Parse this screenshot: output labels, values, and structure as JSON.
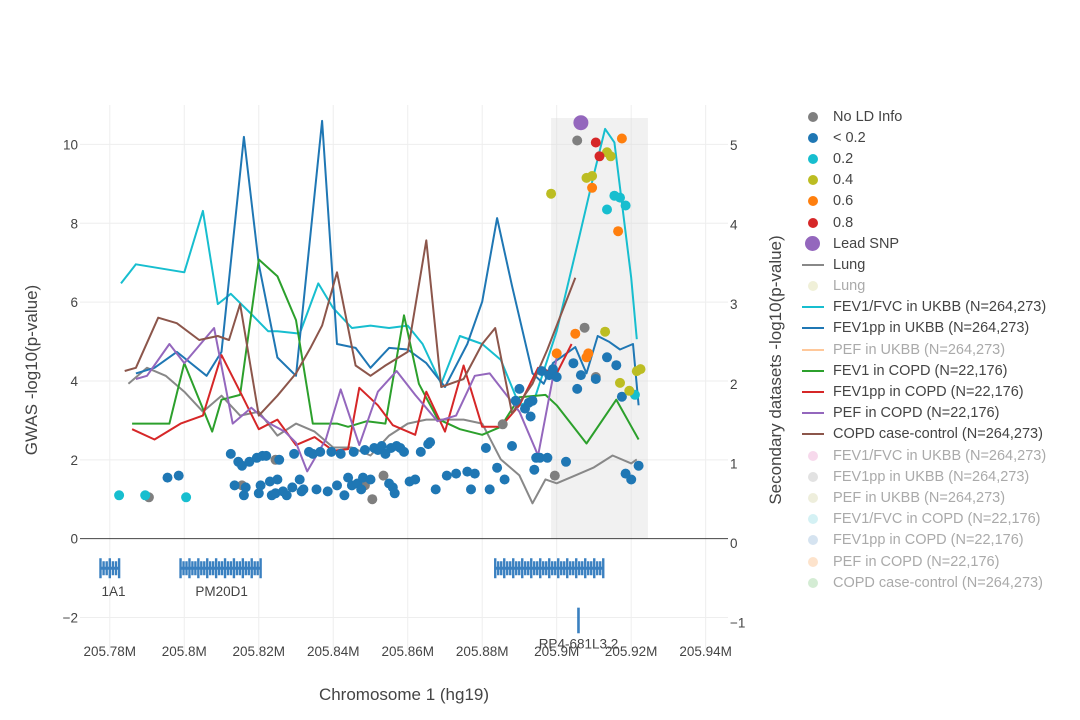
{
  "chart_data": {
    "type": "scatter",
    "xlabel": "Chromosome 1 (hg19)",
    "ylabel": "GWAS -log10(p-value)",
    "y2label": "Secondary datasets -log10(p-value)",
    "xlim": [
      205.772,
      205.946
    ],
    "ylim": [
      -2.9,
      11.0
    ],
    "y2lim": [
      -1.38,
      5.5
    ],
    "x_ticks": [
      205.78,
      205.8,
      205.82,
      205.84,
      205.86,
      205.88,
      205.9,
      205.92,
      205.94
    ],
    "x_tick_labels": [
      "205.78M",
      "205.8M",
      "205.82M",
      "205.84M",
      "205.86M",
      "205.88M",
      "205.9M",
      "205.92M",
      "205.94M"
    ],
    "y_ticks": [
      -2,
      0,
      2,
      4,
      6,
      8,
      10
    ],
    "y_tick_labels": [
      "−2",
      "0",
      "2",
      "4",
      "6",
      "8",
      "10"
    ],
    "y2_ticks": [
      -1,
      0,
      1,
      2,
      3,
      4,
      5
    ],
    "y2_tick_labels": [
      "−1",
      "0",
      "1",
      "2",
      "3",
      "4",
      "5"
    ],
    "highlight_region": [
      205.8985,
      205.9245
    ],
    "grid": true,
    "legend_position": "right",
    "ld_colors": {
      "none": "#7f7f7f",
      "lt02": "#1f77b4",
      "p2": "#17becf",
      "p4": "#bcbd22",
      "p6": "#ff7f0e",
      "p8": "#d62728",
      "lead": "#9467bd"
    },
    "points": {
      "none": [
        [
          205.7905,
          1.05
        ],
        [
          205.8155,
          1.35
        ],
        [
          205.8245,
          2.0
        ],
        [
          205.8485,
          1.35
        ],
        [
          205.8505,
          1.0
        ],
        [
          205.8535,
          1.6
        ],
        [
          205.8855,
          2.9
        ],
        [
          205.8995,
          1.6
        ],
        [
          205.9055,
          10.1
        ],
        [
          205.9075,
          5.35
        ],
        [
          205.9105,
          4.1
        ]
      ],
      "lt02": [
        [
          205.7955,
          1.55
        ],
        [
          205.7985,
          1.6
        ],
        [
          205.8125,
          2.15
        ],
        [
          205.8135,
          1.35
        ],
        [
          205.8145,
          1.95
        ],
        [
          205.8155,
          1.85
        ],
        [
          205.816,
          1.1
        ],
        [
          205.8165,
          1.3
        ],
        [
          205.8175,
          1.95
        ],
        [
          205.8195,
          2.05
        ],
        [
          205.82,
          1.15
        ],
        [
          205.8205,
          1.35
        ],
        [
          205.821,
          2.1
        ],
        [
          205.822,
          2.1
        ],
        [
          205.823,
          1.45
        ],
        [
          205.8235,
          1.1
        ],
        [
          205.8245,
          1.15
        ],
        [
          205.825,
          1.5
        ],
        [
          205.8255,
          2.0
        ],
        [
          205.8265,
          1.2
        ],
        [
          205.8275,
          1.1
        ],
        [
          205.829,
          1.3
        ],
        [
          205.8295,
          2.15
        ],
        [
          205.831,
          1.5
        ],
        [
          205.8315,
          1.2
        ],
        [
          205.832,
          1.25
        ],
        [
          205.8335,
          2.2
        ],
        [
          205.8345,
          2.15
        ],
        [
          205.8355,
          1.25
        ],
        [
          205.8365,
          2.2
        ],
        [
          205.8385,
          1.2
        ],
        [
          205.8395,
          2.2
        ],
        [
          205.841,
          1.35
        ],
        [
          205.842,
          2.15
        ],
        [
          205.843,
          1.1
        ],
        [
          205.844,
          1.55
        ],
        [
          205.845,
          1.35
        ],
        [
          205.8455,
          2.2
        ],
        [
          205.8465,
          1.4
        ],
        [
          205.8475,
          1.25
        ],
        [
          205.848,
          1.55
        ],
        [
          205.8485,
          2.25
        ],
        [
          205.85,
          1.5
        ],
        [
          205.851,
          2.3
        ],
        [
          205.852,
          2.25
        ],
        [
          205.853,
          2.35
        ],
        [
          205.854,
          2.15
        ],
        [
          205.855,
          1.4
        ],
        [
          205.8555,
          2.3
        ],
        [
          205.856,
          1.3
        ],
        [
          205.8565,
          1.15
        ],
        [
          205.857,
          2.35
        ],
        [
          205.858,
          2.3
        ],
        [
          205.859,
          2.2
        ],
        [
          205.8605,
          1.45
        ],
        [
          205.862,
          1.5
        ],
        [
          205.8635,
          2.2
        ],
        [
          205.8655,
          2.4
        ],
        [
          205.866,
          2.45
        ],
        [
          205.8675,
          1.25
        ],
        [
          205.8705,
          1.6
        ],
        [
          205.873,
          1.65
        ],
        [
          205.876,
          1.7
        ],
        [
          205.877,
          1.25
        ],
        [
          205.878,
          1.65
        ],
        [
          205.881,
          2.3
        ],
        [
          205.882,
          1.25
        ],
        [
          205.884,
          1.8
        ],
        [
          205.886,
          1.5
        ],
        [
          205.888,
          2.35
        ],
        [
          205.889,
          3.5
        ],
        [
          205.89,
          3.8
        ],
        [
          205.8915,
          3.3
        ],
        [
          205.8925,
          3.45
        ],
        [
          205.893,
          3.1
        ],
        [
          205.8935,
          3.5
        ],
        [
          205.894,
          1.75
        ],
        [
          205.8945,
          2.05
        ],
        [
          205.8955,
          2.05
        ],
        [
          205.896,
          4.25
        ],
        [
          205.8975,
          2.05
        ],
        [
          205.898,
          4.15
        ],
        [
          205.899,
          4.3
        ],
        [
          205.9,
          4.1
        ],
        [
          205.9025,
          1.95
        ],
        [
          205.9045,
          4.45
        ],
        [
          205.9055,
          3.8
        ],
        [
          205.9065,
          4.15
        ],
        [
          205.9105,
          4.05
        ],
        [
          205.9135,
          4.6
        ],
        [
          205.916,
          4.4
        ],
        [
          205.9175,
          3.6
        ],
        [
          205.9185,
          1.65
        ],
        [
          205.92,
          1.5
        ],
        [
          205.922,
          1.85
        ]
      ],
      "p2": [
        [
          205.7825,
          1.1
        ],
        [
          205.7895,
          1.1
        ],
        [
          205.8005,
          1.05
        ],
        [
          205.9135,
          8.35
        ],
        [
          205.9155,
          8.7
        ],
        [
          205.917,
          8.65
        ],
        [
          205.9185,
          8.45
        ],
        [
          205.921,
          3.65
        ]
      ],
      "p4": [
        [
          205.8985,
          8.75
        ],
        [
          205.908,
          9.15
        ],
        [
          205.9095,
          9.2
        ],
        [
          205.913,
          5.25
        ],
        [
          205.9135,
          9.8
        ],
        [
          205.9145,
          9.7
        ],
        [
          205.917,
          3.95
        ],
        [
          205.9195,
          3.75
        ],
        [
          205.9215,
          4.25
        ],
        [
          205.9225,
          4.3
        ]
      ],
      "p6": [
        [
          205.9,
          4.7
        ],
        [
          205.905,
          5.2
        ],
        [
          205.908,
          4.6
        ],
        [
          205.9085,
          4.7
        ],
        [
          205.9095,
          8.9
        ],
        [
          205.9165,
          7.8
        ],
        [
          205.9175,
          10.15
        ]
      ],
      "p8": [
        [
          205.9105,
          10.05
        ],
        [
          205.9115,
          9.7
        ]
      ],
      "lead": [
        [
          205.9065,
          10.55
        ]
      ]
    },
    "series": [
      {
        "name": "Lung",
        "color": "#888888",
        "x": [
          205.785,
          205.79,
          205.795,
          205.8,
          205.805,
          205.81,
          205.815,
          205.82,
          205.825,
          205.83,
          205.835,
          205.84,
          205.845,
          205.85,
          205.855,
          205.86,
          205.865,
          205.87,
          205.875,
          205.88,
          205.885,
          205.89,
          205.8935,
          205.897,
          205.9,
          205.905,
          205.91,
          205.915,
          205.92,
          205.9215
        ],
        "y": [
          2.0,
          2.2,
          2.1,
          1.9,
          1.65,
          1.85,
          1.6,
          1.65,
          1.35,
          1.5,
          1.4,
          1.2,
          1.2,
          1.1,
          1.35,
          1.5,
          1.55,
          1.55,
          1.55,
          1.5,
          1.05,
          0.85,
          0.5,
          0.8,
          0.75,
          0.85,
          0.95,
          1.1,
          1.0,
          1.05
        ]
      },
      {
        "name": "FEV1/FVC in UKBB (N=264,273)",
        "color": "#17becf",
        "x": [
          205.783,
          205.787,
          205.8,
          205.805,
          205.809,
          205.8125,
          205.8175,
          205.8225,
          205.825,
          205.831,
          205.836,
          205.84,
          205.845,
          205.85,
          205.855,
          205.86,
          205.864,
          205.869,
          205.874,
          205.88,
          205.885,
          205.89,
          205.894,
          205.9,
          205.906,
          205.91,
          205.913,
          205.9155,
          205.92,
          205.9215
        ],
        "y": [
          3.26,
          3.5,
          3.4,
          4.17,
          3.0,
          3.13,
          2.9,
          2.66,
          2.66,
          2.63,
          3.26,
          2.95,
          2.7,
          2.73,
          2.7,
          2.73,
          2.5,
          2.0,
          2.6,
          2.5,
          2.3,
          1.73,
          1.8,
          2.66,
          3.83,
          4.63,
          5.2,
          5.03,
          3.33,
          2.56
        ]
      },
      {
        "name": "FEV1pp in UKBB (N=264,273)",
        "color": "#1f77b4",
        "x": [
          205.787,
          205.792,
          205.798,
          205.806,
          205.81,
          205.816,
          205.82,
          205.825,
          205.83,
          205.837,
          205.841,
          205.846,
          205.85,
          205.855,
          205.86,
          205.865,
          205.87,
          205.876,
          205.88,
          205.884,
          205.888,
          205.8935,
          205.8965,
          205.899,
          205.905,
          205.908,
          205.911,
          205.914,
          205.917,
          205.9205,
          205.922
        ],
        "y": [
          2.13,
          2.2,
          2.4,
          2.1,
          2.4,
          5.1,
          3.5,
          2.33,
          2.1,
          5.3,
          2.5,
          2.45,
          2.2,
          2.45,
          2.43,
          2.26,
          1.96,
          2.5,
          3.03,
          4.08,
          3.23,
          2.13,
          2.0,
          2.26,
          2.46,
          2.13,
          2.6,
          2.53,
          2.43,
          2.5,
          1.73
        ]
      },
      {
        "name": "FEV1 in COPD (N=22,176)",
        "color": "#2ca02c",
        "x": [
          205.786,
          205.796,
          205.8,
          205.8075,
          205.81,
          205.815,
          205.82,
          205.825,
          205.83,
          205.8345,
          205.841,
          205.844,
          205.849,
          205.854,
          205.859,
          205.863,
          205.868,
          205.874,
          205.88,
          205.885,
          205.89,
          205.897,
          205.9,
          205.908,
          205.916,
          205.922
        ],
        "y": [
          1.5,
          1.5,
          2.26,
          1.4,
          1.8,
          1.86,
          3.56,
          3.35,
          2.8,
          1.5,
          1.5,
          1.46,
          1.53,
          1.5,
          2.86,
          2.0,
          1.56,
          1.43,
          1.36,
          1.46,
          1.83,
          1.86,
          1.73,
          1.25,
          1.8,
          1.3
        ]
      },
      {
        "name": "FEV1pp in COPD (N=22,176)",
        "color": "#d62728",
        "x": [
          205.786,
          205.792,
          205.799,
          205.805,
          205.81,
          205.815,
          205.82,
          205.825,
          205.83,
          205.835,
          205.84,
          205.844,
          205.847,
          205.852,
          205.856,
          205.862,
          205.865,
          205.87,
          205.875,
          205.88,
          205.885,
          205.89,
          205.895,
          205.9,
          205.904
        ],
        "y": [
          1.43,
          1.3,
          1.5,
          1.6,
          2.36,
          1.9,
          1.43,
          1.55,
          1.23,
          1.33,
          1.16,
          1.18,
          1.95,
          1.73,
          1.48,
          1.36,
          1.9,
          1.4,
          2.23,
          1.46,
          1.46,
          1.73,
          2.2,
          2.13,
          2.5
        ]
      },
      {
        "name": "PEF in COPD (N=22,176)",
        "color": "#9467bd",
        "x": [
          205.787,
          205.79,
          205.796,
          205.8,
          205.808,
          205.813,
          205.818,
          205.823,
          205.827,
          205.83,
          205.833,
          205.838,
          205.842,
          205.847,
          205.852,
          205.857,
          205.862,
          205.868,
          205.873,
          205.878,
          205.882,
          205.89,
          205.895,
          205.9
        ],
        "y": [
          2.06,
          2.1,
          2.5,
          2.26,
          2.7,
          1.5,
          1.7,
          1.5,
          1.4,
          1.26,
          0.9,
          1.3,
          1.93,
          1.23,
          1.9,
          2.16,
          1.86,
          1.53,
          1.6,
          2.1,
          2.13,
          1.65,
          1.1,
          2.33
        ]
      },
      {
        "name": "COPD case-control (N=264,273)",
        "color": "#8c564b",
        "x": [
          205.784,
          205.787,
          205.793,
          205.798,
          205.804,
          205.809,
          205.812,
          205.815,
          205.82,
          205.825,
          205.83,
          205.834,
          205.837,
          205.841,
          205.846,
          205.85,
          205.854,
          205.86,
          205.865,
          205.869,
          205.875,
          205.88,
          205.8835,
          205.888,
          205.8935,
          205.8975,
          205.905
        ],
        "y": [
          2.16,
          2.2,
          2.83,
          2.76,
          2.55,
          2.6,
          2.55,
          3.0,
          1.6,
          1.85,
          2.13,
          2.46,
          2.73,
          3.4,
          2.23,
          2.1,
          2.23,
          2.4,
          3.8,
          1.96,
          2.06,
          2.5,
          2.7,
          1.63,
          2.0,
          2.43,
          3.33
        ]
      }
    ],
    "genes": [
      {
        "name": "1A1",
        "start": 205.7775,
        "end": 205.7825,
        "row": 0
      },
      {
        "name": "PM20D1",
        "start": 205.799,
        "end": 205.8205,
        "row": 0
      },
      {
        "name": "",
        "start": 205.8835,
        "end": 205.9125,
        "row": 0
      },
      {
        "name": "RP4-681L3.2",
        "start": 205.9055,
        "end": 205.9062,
        "row": 1
      }
    ],
    "legend": [
      {
        "label": "No LD Info",
        "kind": "dot",
        "color": "#7f7f7f",
        "faded": false
      },
      {
        "label": "< 0.2",
        "kind": "dot",
        "color": "#1f77b4",
        "faded": false
      },
      {
        "label": "0.2",
        "kind": "dot",
        "color": "#17becf",
        "faded": false
      },
      {
        "label": "0.4",
        "kind": "dot",
        "color": "#bcbd22",
        "faded": false
      },
      {
        "label": "0.6",
        "kind": "dot",
        "color": "#ff7f0e",
        "faded": false
      },
      {
        "label": "0.8",
        "kind": "dot",
        "color": "#d62728",
        "faded": false
      },
      {
        "label": "Lead SNP",
        "kind": "bigdot",
        "color": "#9467bd",
        "faded": false
      },
      {
        "label": "Lung",
        "kind": "line",
        "color": "#888888",
        "faded": false
      },
      {
        "label": "Lung",
        "kind": "dot",
        "color": "#f0f0d8",
        "faded": true
      },
      {
        "label": "FEV1/FVC in UKBB (N=264,273)",
        "kind": "line",
        "color": "#17becf",
        "faded": false
      },
      {
        "label": "FEV1pp in UKBB (N=264,273)",
        "kind": "line",
        "color": "#1f77b4",
        "faded": false
      },
      {
        "label": "PEF in UKBB (N=264,273)",
        "kind": "line",
        "color": "#ffc89a",
        "faded": true
      },
      {
        "label": "FEV1 in COPD (N=22,176)",
        "kind": "line",
        "color": "#2ca02c",
        "faded": false
      },
      {
        "label": "FEV1pp in COPD (N=22,176)",
        "kind": "line",
        "color": "#d62728",
        "faded": false
      },
      {
        "label": "PEF in COPD (N=22,176)",
        "kind": "line",
        "color": "#9467bd",
        "faded": false
      },
      {
        "label": "COPD case-control (N=264,273)",
        "kind": "line",
        "color": "#8c564b",
        "faded": false
      },
      {
        "label": "FEV1/FVC in UKBB (N=264,273)",
        "kind": "dot",
        "color": "#f7d9ec",
        "faded": true
      },
      {
        "label": "FEV1pp in UKBB (N=264,273)",
        "kind": "dot",
        "color": "#e2e2e2",
        "faded": true
      },
      {
        "label": "PEF in UKBB (N=264,273)",
        "kind": "dot",
        "color": "#eeeedc",
        "faded": true
      },
      {
        "label": "FEV1/FVC in COPD (N=22,176)",
        "kind": "dot",
        "color": "#d4f1f4",
        "faded": true
      },
      {
        "label": "FEV1pp in COPD (N=22,176)",
        "kind": "dot",
        "color": "#d5e3f0",
        "faded": true
      },
      {
        "label": "PEF in COPD (N=22,176)",
        "kind": "dot",
        "color": "#fde3cc",
        "faded": true
      },
      {
        "label": "COPD case-control (N=264,273)",
        "kind": "dot",
        "color": "#d4ecd4",
        "faded": true
      }
    ]
  }
}
